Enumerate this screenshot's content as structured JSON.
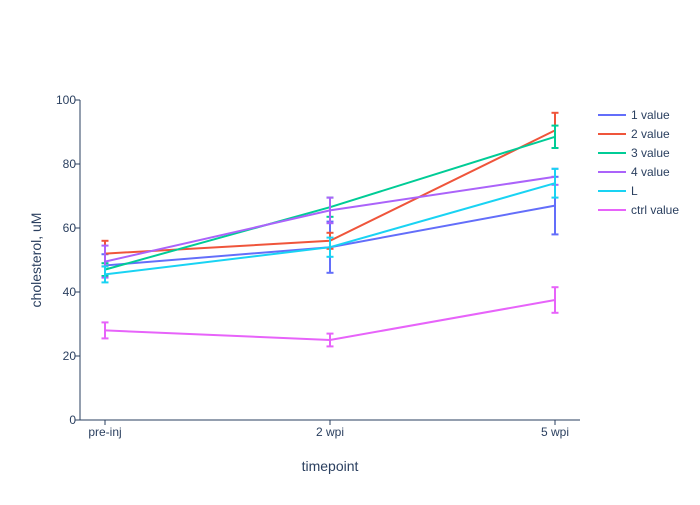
{
  "chart_data": {
    "type": "line",
    "title": "",
    "xlabel": "timepoint",
    "ylabel": "cholesterol, uM",
    "categories": [
      "pre-inj",
      "2 wpi",
      "5 wpi"
    ],
    "ylim": [
      0,
      100
    ],
    "yticks": [
      0,
      20,
      40,
      60,
      80,
      100
    ],
    "grid": false,
    "legend_position": "right",
    "error_bars": true,
    "series": [
      {
        "name": "1 value",
        "color": "#636efa",
        "values": [
          48.3,
          54.0,
          67.0
        ],
        "errors": [
          3.5,
          8.0,
          9.0
        ]
      },
      {
        "name": "2 value",
        "color": "#ef553b",
        "values": [
          52.0,
          56.0,
          90.5
        ],
        "errors": [
          4.0,
          2.5,
          5.5
        ]
      },
      {
        "name": "3 value",
        "color": "#00cc96",
        "values": [
          47.0,
          66.5,
          88.5
        ],
        "errors": [
          2.0,
          3.0,
          3.5
        ]
      },
      {
        "name": "4 value",
        "color": "#ab63fa",
        "values": [
          49.5,
          65.5,
          76.0
        ],
        "errors": [
          5.0,
          4.0,
          2.5
        ]
      },
      {
        "name": "L",
        "color": "#19d3f3",
        "values": [
          45.5,
          54.0,
          74.0
        ],
        "errors": [
          2.5,
          3.0,
          4.5
        ]
      },
      {
        "name": "ctrl value",
        "color": "#e763fa",
        "values": [
          28.0,
          25.0,
          37.5
        ],
        "errors": [
          2.5,
          2.0,
          4.0
        ]
      }
    ]
  }
}
